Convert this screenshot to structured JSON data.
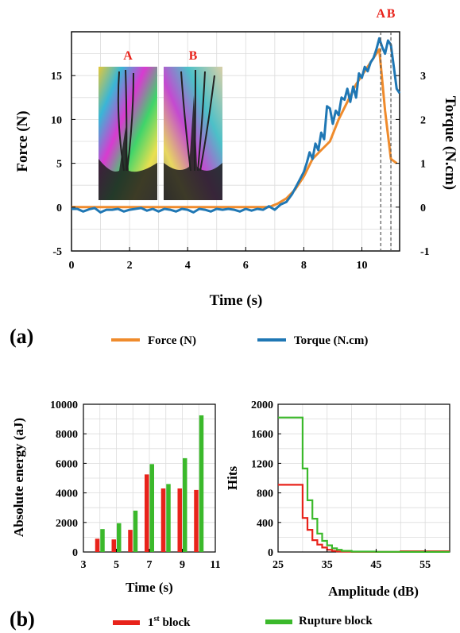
{
  "panel_labels": {
    "a": "(a)",
    "b": "(b)"
  },
  "colors": {
    "force": "#ef8b2c",
    "torque": "#1f77b4",
    "first_block": "#e8231b",
    "rupture_block": "#3bb92b",
    "marker": "#e8231b",
    "grid": "#dcdcdc"
  },
  "chart_data": [
    {
      "id": "force-torque",
      "type": "line",
      "xlabel": "Time (s)",
      "ylabel_left": "Force (N)",
      "ylabel_right": "Torque (N.cm)",
      "xlim": [
        0,
        11.3
      ],
      "ylim_left": [
        -5,
        20
      ],
      "ylim_right": [
        -1.0,
        4.0
      ],
      "xticks": [
        0,
        2,
        4,
        6,
        8,
        10
      ],
      "yticks_left": [
        -5,
        0,
        5,
        10,
        15
      ],
      "yticks_right": [
        -1,
        0,
        1,
        2,
        3
      ],
      "grid": true,
      "markers": [
        {
          "label": "A",
          "x": 10.65
        },
        {
          "label": "B",
          "x": 11.0
        }
      ],
      "inset_photos": [
        {
          "label": "A"
        },
        {
          "label": "B"
        }
      ],
      "legend": [
        "Force (N)",
        "Torque (N.cm)"
      ],
      "series": [
        {
          "name": "Force (N)",
          "axis": "left",
          "x": [
            0,
            0.5,
            1,
            2,
            3,
            4,
            5,
            6,
            6.8,
            7.1,
            7.4,
            7.7,
            8.0,
            8.3,
            8.6,
            8.9,
            9.2,
            9.5,
            9.8,
            10.1,
            10.4,
            10.6,
            10.8,
            11.0,
            11.2
          ],
          "y": [
            0,
            0,
            0,
            0,
            0,
            0,
            0,
            0,
            0,
            0.4,
            1.0,
            2.0,
            3.5,
            5.5,
            6.5,
            7.5,
            10.0,
            12.0,
            14.0,
            15.5,
            17.0,
            18.0,
            11.0,
            5.5,
            5.0
          ]
        },
        {
          "name": "Torque (N.cm)",
          "axis": "right",
          "x": [
            0,
            0.2,
            0.4,
            0.6,
            0.8,
            1.0,
            1.2,
            1.4,
            1.6,
            1.8,
            2.0,
            2.2,
            2.4,
            2.6,
            2.8,
            3.0,
            3.2,
            3.4,
            3.6,
            3.8,
            4.0,
            4.2,
            4.4,
            4.6,
            4.8,
            5.0,
            5.2,
            5.4,
            5.6,
            5.8,
            6.0,
            6.2,
            6.4,
            6.6,
            6.8,
            7.0,
            7.2,
            7.4,
            7.6,
            7.8,
            8.0,
            8.1,
            8.2,
            8.3,
            8.4,
            8.5,
            8.6,
            8.7,
            8.8,
            8.9,
            9.0,
            9.1,
            9.2,
            9.3,
            9.4,
            9.5,
            9.6,
            9.7,
            9.8,
            9.9,
            10.0,
            10.1,
            10.2,
            10.3,
            10.4,
            10.5,
            10.6,
            10.7,
            10.8,
            10.9,
            11.0,
            11.1,
            11.2,
            11.3
          ],
          "y": [
            -0.04,
            -0.04,
            -0.1,
            -0.05,
            -0.02,
            -0.12,
            -0.06,
            -0.06,
            -0.04,
            -0.1,
            -0.06,
            -0.04,
            -0.02,
            -0.08,
            -0.04,
            -0.1,
            -0.04,
            -0.06,
            -0.1,
            -0.04,
            -0.06,
            -0.12,
            -0.04,
            -0.06,
            -0.1,
            -0.04,
            -0.06,
            -0.04,
            -0.06,
            -0.1,
            -0.04,
            -0.08,
            -0.04,
            -0.06,
            0.02,
            -0.06,
            0.06,
            0.12,
            0.3,
            0.55,
            0.8,
            1.0,
            1.25,
            1.1,
            1.45,
            1.3,
            1.7,
            1.55,
            2.3,
            2.25,
            1.9,
            2.2,
            2.1,
            2.5,
            2.45,
            2.7,
            2.4,
            2.75,
            2.5,
            3.05,
            2.95,
            3.2,
            3.1,
            3.3,
            3.4,
            3.6,
            3.85,
            3.65,
            3.5,
            3.8,
            3.7,
            3.2,
            2.7,
            2.6
          ]
        }
      ]
    },
    {
      "id": "absolute-energy",
      "type": "bar",
      "xlabel": "Time (s)",
      "ylabel": "Absolute energy (aJ)",
      "xlim": [
        3,
        11
      ],
      "ylim": [
        0,
        10000
      ],
      "xticks": [
        3,
        5,
        7,
        9,
        11
      ],
      "yticks": [
        0,
        2000,
        4000,
        6000,
        8000,
        10000
      ],
      "grid": true,
      "x": [
        4,
        5,
        6,
        7,
        8,
        9,
        10
      ],
      "series": [
        {
          "name": "1st block",
          "values": [
            900,
            850,
            1500,
            5250,
            4300,
            4300,
            4200
          ]
        },
        {
          "name": "Rupture block",
          "values": [
            1550,
            1950,
            2800,
            5950,
            4600,
            6350,
            9250
          ]
        }
      ]
    },
    {
      "id": "hits-amplitude",
      "type": "line",
      "step": true,
      "xlabel": "Amplitude (dB)",
      "ylabel": "Hits",
      "xlim": [
        25,
        60
      ],
      "ylim": [
        0,
        2000
      ],
      "xticks": [
        25,
        35,
        45,
        55
      ],
      "yticks": [
        0,
        400,
        800,
        1200,
        1600,
        2000
      ],
      "grid": true,
      "series": [
        {
          "name": "1st block",
          "x": [
            25,
            30,
            31,
            32,
            33,
            34,
            35,
            36,
            37,
            38,
            40,
            45,
            50,
            55,
            60
          ],
          "y": [
            910,
            460,
            300,
            160,
            100,
            60,
            30,
            15,
            8,
            5,
            2,
            1,
            10,
            10,
            10
          ]
        },
        {
          "name": "Rupture block",
          "x": [
            25,
            30,
            31,
            32,
            33,
            34,
            35,
            36,
            37,
            38,
            40,
            45,
            50,
            55,
            60
          ],
          "y": [
            1820,
            1130,
            700,
            450,
            250,
            150,
            90,
            50,
            30,
            15,
            5,
            2,
            1,
            1,
            1
          ]
        }
      ]
    }
  ],
  "legend_b": [
    {
      "base": "1",
      "sup": "st",
      "rest": " block"
    },
    {
      "base": "Rupture block",
      "sup": "",
      "rest": ""
    }
  ]
}
